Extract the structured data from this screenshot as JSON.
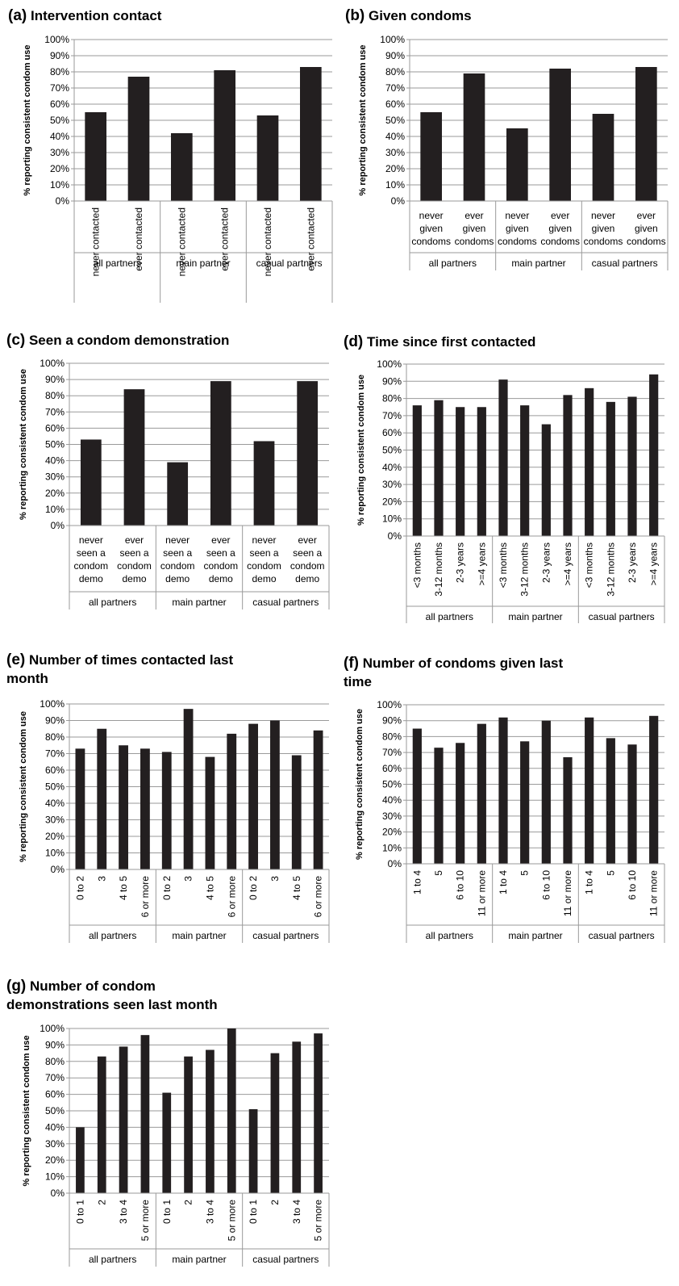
{
  "ylabel": "% reporting consistent condom use",
  "chart_data": [
    {
      "id": "a",
      "type": "bar",
      "panel_label": "(a)",
      "title": "Intervention contact",
      "groups": [
        "all partners",
        "main partner",
        "casual partners"
      ],
      "categories": [
        "never contacted",
        "ever contacted",
        "never contacted",
        "ever contacted",
        "never contacted",
        "ever contacted"
      ],
      "values": [
        55,
        77,
        42,
        81,
        53,
        83
      ],
      "ylim": [
        0,
        100
      ],
      "ytick_labels": [
        "0%",
        "10%",
        "20%",
        "30%",
        "40%",
        "50%",
        "60%",
        "70%",
        "80%",
        "90%",
        "100%"
      ],
      "grid": true
    },
    {
      "id": "b",
      "type": "bar",
      "panel_label": "(b)",
      "title": "Given condoms",
      "groups": [
        "all partners",
        "main partner",
        "casual partners"
      ],
      "categories": [
        "never given condoms",
        "ever given condoms",
        "never given condoms",
        "ever given condoms",
        "never given condoms",
        "ever given condoms"
      ],
      "values": [
        55,
        79,
        45,
        82,
        54,
        83
      ],
      "ylim": [
        0,
        100
      ],
      "ytick_labels": [
        "0%",
        "10%",
        "20%",
        "30%",
        "40%",
        "50%",
        "60%",
        "70%",
        "80%",
        "90%",
        "100%"
      ],
      "grid": true
    },
    {
      "id": "c",
      "type": "bar",
      "panel_label": "(c)",
      "title": "Seen a condom demonstration",
      "groups": [
        "all partners",
        "main partner",
        "casual partners"
      ],
      "categories": [
        "never seen a condom demo",
        "ever seen a condom demo",
        "never seen a condom demo",
        "ever seen a condom demo",
        "never seen a condom demo",
        "ever seen a condom demo"
      ],
      "values": [
        53,
        84,
        39,
        89,
        52,
        89
      ],
      "ylim": [
        0,
        100
      ],
      "ytick_labels": [
        "0%",
        "10%",
        "20%",
        "30%",
        "40%",
        "50%",
        "60%",
        "70%",
        "80%",
        "90%",
        "100%"
      ],
      "grid": true
    },
    {
      "id": "d",
      "type": "bar",
      "panel_label": "(d)",
      "title": "Time since first contacted",
      "groups": [
        "all partners",
        "main partner",
        "casual partners"
      ],
      "categories": [
        "<3 months",
        "3-12 months",
        "2-3 years",
        ">=4 years",
        "<3 months",
        "3-12 months",
        "2-3 years",
        ">=4 years",
        "<3 months",
        "3-12 months",
        "2-3 years",
        ">=4 years"
      ],
      "values": [
        76,
        79,
        75,
        75,
        91,
        76,
        65,
        82,
        86,
        78,
        81,
        94
      ],
      "ylim": [
        0,
        100
      ],
      "ytick_labels": [
        "0%",
        "10%",
        "20%",
        "30%",
        "40%",
        "50%",
        "60%",
        "70%",
        "80%",
        "90%",
        "100%"
      ],
      "grid": true
    },
    {
      "id": "e",
      "type": "bar",
      "panel_label": "(e)",
      "title": "Number of times contacted last month",
      "groups": [
        "all partners",
        "main partner",
        "casual partners"
      ],
      "categories": [
        "0 to 2",
        "3",
        "4 to 5",
        "6 or more",
        "0 to 2",
        "3",
        "4 to 5",
        "6 or more",
        "0 to 2",
        "3",
        "4 to 5",
        "6 or more"
      ],
      "values": [
        73,
        85,
        75,
        73,
        71,
        97,
        68,
        82,
        88,
        90,
        69,
        84
      ],
      "ylim": [
        0,
        100
      ],
      "ytick_labels": [
        "0%",
        "10%",
        "20%",
        "30%",
        "40%",
        "50%",
        "60%",
        "70%",
        "80%",
        "90%",
        "100%"
      ],
      "grid": true
    },
    {
      "id": "f",
      "type": "bar",
      "panel_label": "(f)",
      "title": "Number of condoms given last time",
      "groups": [
        "all partners",
        "main partner",
        "casual partners"
      ],
      "categories": [
        "1 to 4",
        "5",
        "6 to 10",
        "11 or more",
        "1 to 4",
        "5",
        "6 to 10",
        "11 or more",
        "1 to 4",
        "5",
        "6 to 10",
        "11 or more"
      ],
      "values": [
        85,
        73,
        76,
        88,
        92,
        77,
        90,
        67,
        92,
        79,
        75,
        93
      ],
      "ylim": [
        0,
        100
      ],
      "ytick_labels": [
        "0%",
        "10%",
        "20%",
        "30%",
        "40%",
        "50%",
        "60%",
        "70%",
        "80%",
        "90%",
        "100%"
      ],
      "grid": true
    },
    {
      "id": "g",
      "type": "bar",
      "panel_label": "(g)",
      "title": "Number of condom demonstrations seen last month",
      "groups": [
        "all partners",
        "main partner",
        "casual partners"
      ],
      "categories": [
        "0 to 1",
        "2",
        "3 to 4",
        "5 or more",
        "0 to 1",
        "2",
        "3 to 4",
        "5 or more",
        "0 to 1",
        "2",
        "3 to 4",
        "5 or more"
      ],
      "values": [
        40,
        83,
        89,
        96,
        61,
        83,
        87,
        100,
        51,
        85,
        92,
        97
      ],
      "ylim": [
        0,
        100
      ],
      "ytick_labels": [
        "0%",
        "10%",
        "20%",
        "30%",
        "40%",
        "50%",
        "60%",
        "70%",
        "80%",
        "90%",
        "100%"
      ],
      "grid": true
    }
  ]
}
